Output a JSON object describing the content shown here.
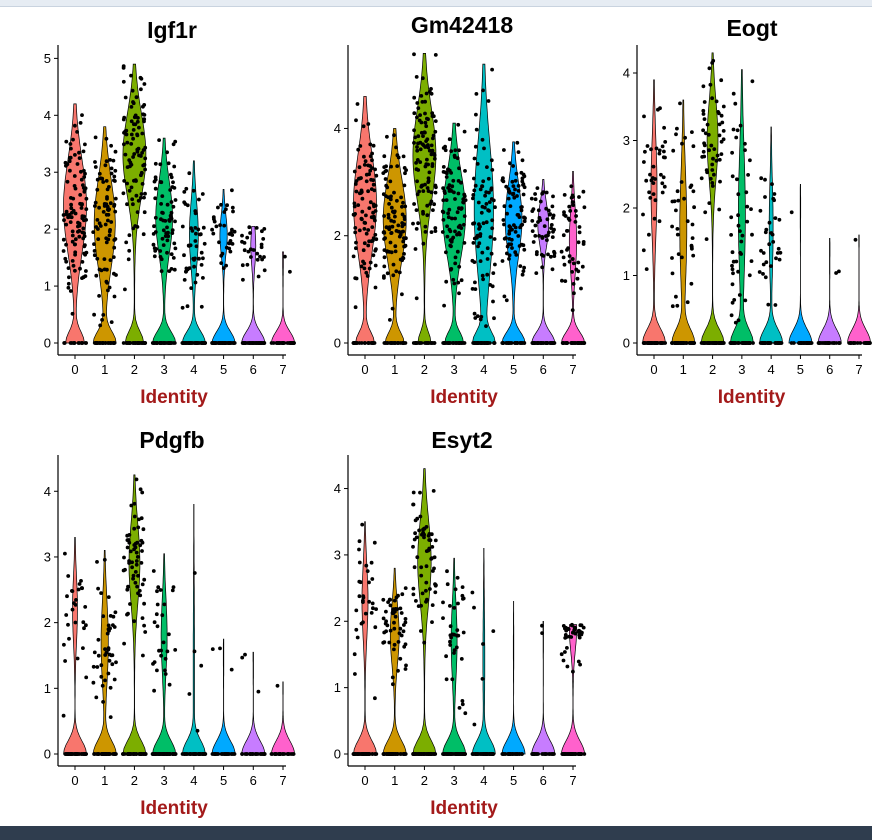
{
  "chart_data": [
    {
      "type": "violin",
      "title": "Igf1r",
      "xlabel": "Identity",
      "ylabel": "",
      "categories": [
        "0",
        "1",
        "2",
        "3",
        "4",
        "5",
        "6",
        "7"
      ],
      "yticks": [
        "0",
        "1",
        "2",
        "3",
        "4",
        "5"
      ],
      "ylim": [
        0,
        5.2
      ],
      "max_expression": [
        4.2,
        3.8,
        4.9,
        3.6,
        3.2,
        2.7,
        2.05,
        1.6
      ],
      "median_nonzero": [
        2.4,
        2.1,
        3.3,
        2.2,
        1.9,
        1.9,
        1.7,
        1.6
      ],
      "fraction_expressing": [
        0.8,
        0.75,
        0.8,
        0.7,
        0.55,
        0.5,
        0.4,
        0.1
      ]
    },
    {
      "type": "violin",
      "title": "Gm42418",
      "xlabel": "Identity",
      "ylabel": "",
      "categories": [
        "0",
        "1",
        "2",
        "3",
        "4",
        "5",
        "6",
        "7"
      ],
      "yticks": [
        "0",
        "2",
        "4"
      ],
      "ylim": [
        0,
        5.5
      ],
      "max_expression": [
        4.6,
        4.0,
        5.4,
        4.1,
        5.2,
        3.75,
        3.05,
        3.2
      ],
      "median_nonzero": [
        2.6,
        2.3,
        3.5,
        2.4,
        2.5,
        2.3,
        2.2,
        1.9
      ],
      "fraction_expressing": [
        0.8,
        0.8,
        0.85,
        0.8,
        0.75,
        0.7,
        0.6,
        0.5
      ]
    },
    {
      "type": "violin",
      "title": "Eogt",
      "xlabel": "Identity",
      "ylabel": "",
      "categories": [
        "0",
        "1",
        "2",
        "3",
        "4",
        "5",
        "6",
        "7"
      ],
      "yticks": [
        "0",
        "1",
        "2",
        "3",
        "4"
      ],
      "ylim": [
        0,
        4.4
      ],
      "max_expression": [
        3.9,
        3.6,
        4.3,
        4.05,
        3.2,
        2.35,
        1.55,
        1.6
      ],
      "median_nonzero": [
        2.3,
        1.7,
        3.0,
        1.9,
        1.7,
        2.0,
        1.4,
        1.6
      ],
      "fraction_expressing": [
        0.45,
        0.5,
        0.6,
        0.5,
        0.35,
        0.05,
        0.05,
        0.03
      ]
    },
    {
      "type": "violin",
      "title": "Pdgfb",
      "xlabel": "Identity",
      "ylabel": "",
      "categories": [
        "0",
        "1",
        "2",
        "3",
        "4",
        "5",
        "6",
        "7"
      ],
      "yticks": [
        "0",
        "1",
        "2",
        "3",
        "4"
      ],
      "ylim": [
        0,
        4.4
      ],
      "max_expression": [
        3.3,
        3.1,
        4.25,
        3.05,
        3.8,
        1.75,
        1.55,
        1.1
      ],
      "median_nonzero": [
        2.2,
        1.7,
        2.9,
        1.8,
        1.3,
        1.5,
        1.5,
        1.1
      ],
      "fraction_expressing": [
        0.4,
        0.5,
        0.6,
        0.45,
        0.15,
        0.05,
        0.05,
        0.03
      ]
    },
    {
      "type": "violin",
      "title": "Esyt2",
      "xlabel": "Identity",
      "ylabel": "",
      "categories": [
        "0",
        "1",
        "2",
        "3",
        "4",
        "5",
        "6",
        "7"
      ],
      "yticks": [
        "0",
        "1",
        "2",
        "3",
        "4"
      ],
      "ylim": [
        0,
        4.4
      ],
      "max_expression": [
        3.5,
        2.8,
        4.3,
        2.95,
        3.1,
        2.3,
        2.0,
        1.95
      ],
      "median_nonzero": [
        2.3,
        1.8,
        2.9,
        1.7,
        1.4,
        1.6,
        1.9,
        1.9
      ],
      "fraction_expressing": [
        0.45,
        0.55,
        0.65,
        0.45,
        0.2,
        0.05,
        0.05,
        0.5
      ]
    }
  ],
  "colors": {
    "clusters": [
      "#F8766D",
      "#CD9600",
      "#7CAE00",
      "#00BE67",
      "#00BFC4",
      "#00A9FF",
      "#C77CFF",
      "#FF61CC"
    ],
    "points": "#000000",
    "axis_label": "#a31a1a"
  }
}
